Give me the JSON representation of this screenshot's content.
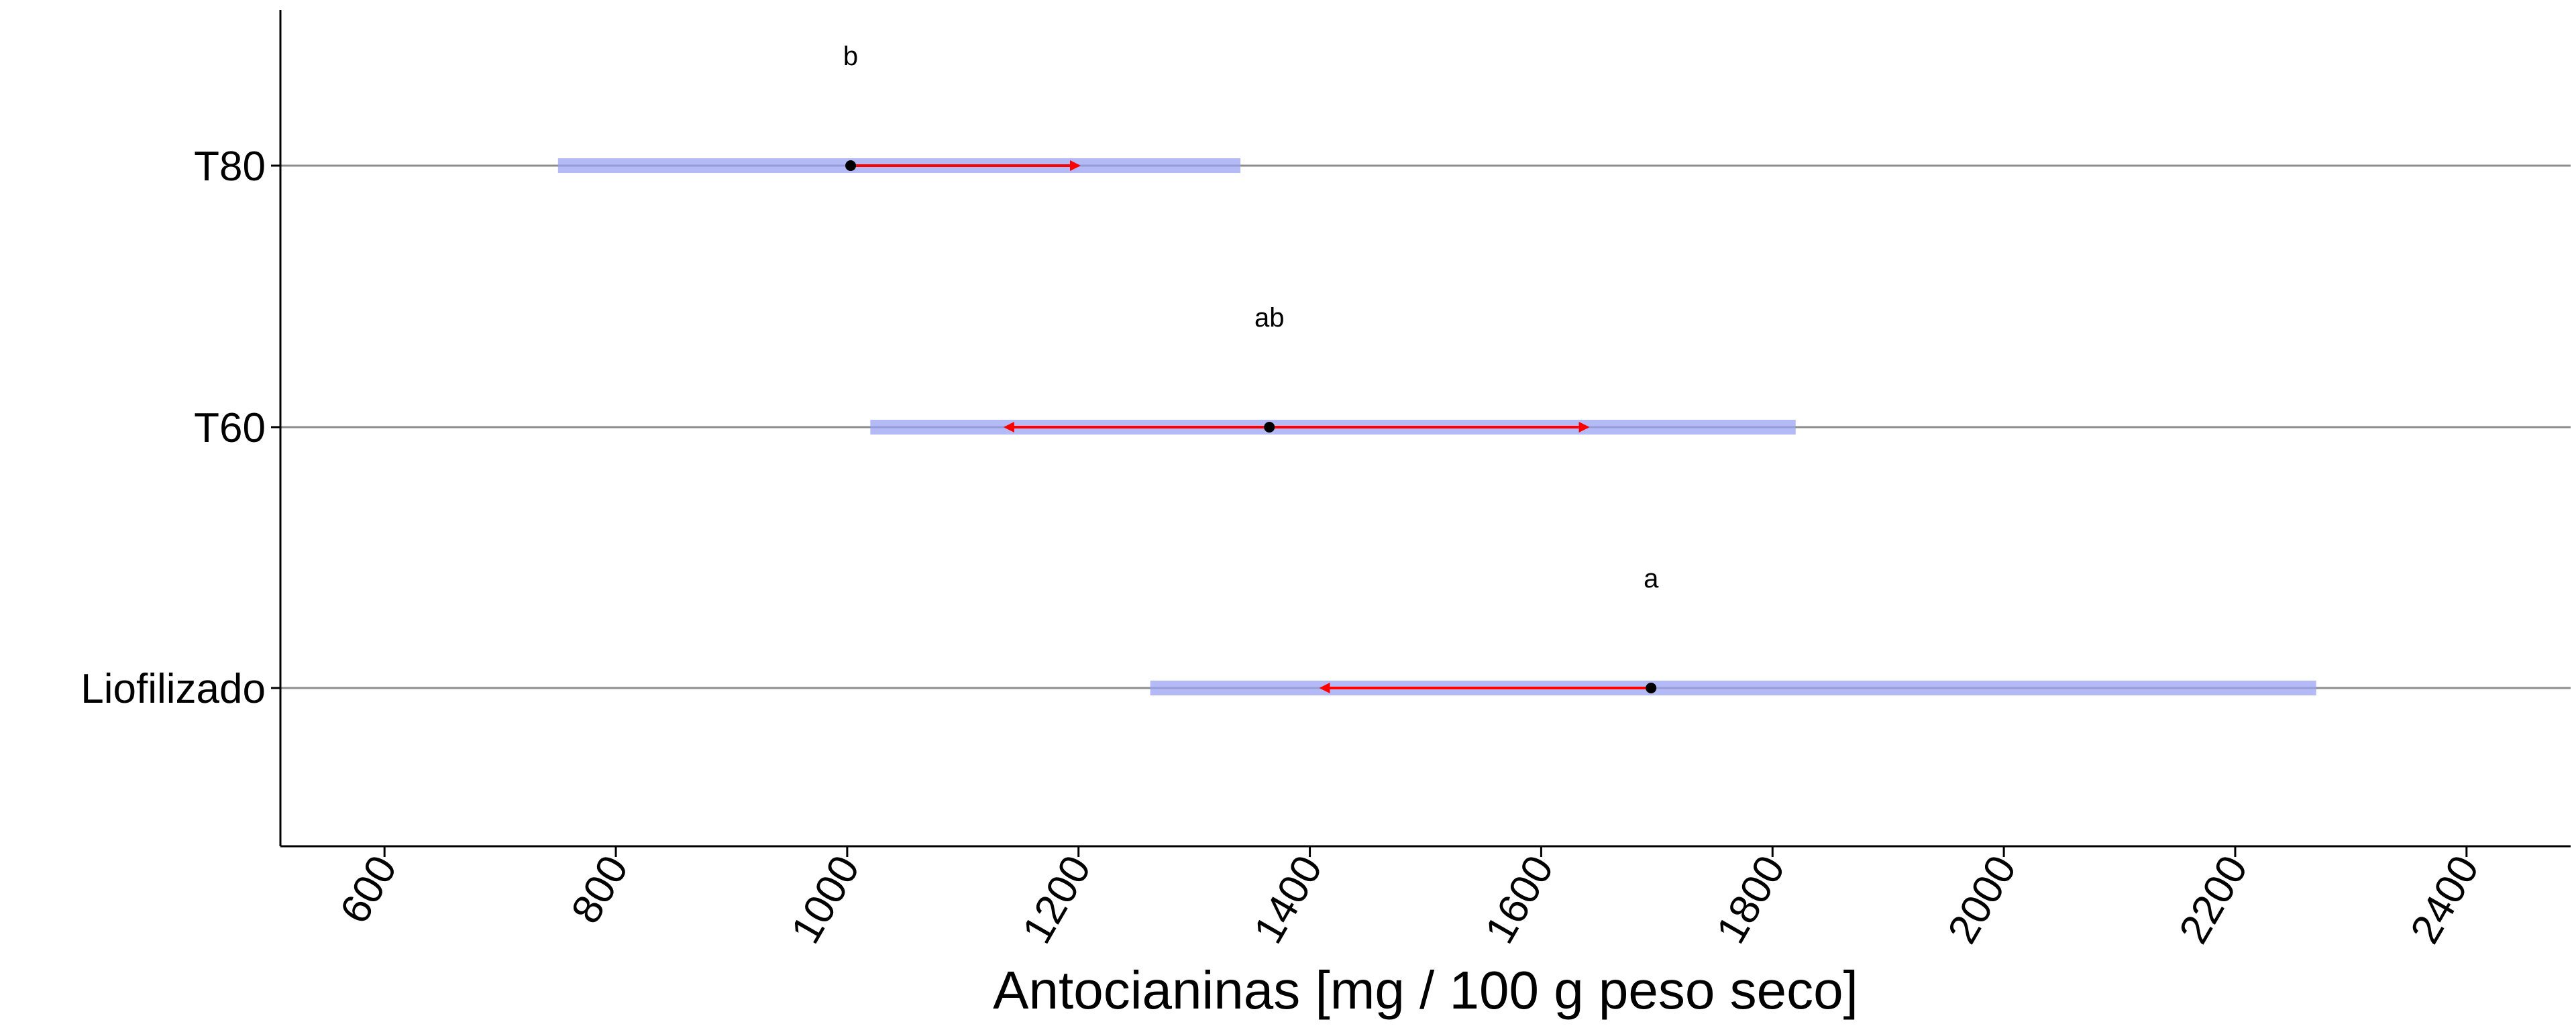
{
  "chart_data": {
    "type": "interval",
    "xlabel": "Antocianinas [mg / 100 g peso seco]",
    "ylabel": "",
    "title": "",
    "xlim": [
      510,
      2490
    ],
    "xticks": [
      600,
      800,
      1000,
      1200,
      1400,
      1600,
      1800,
      2000,
      2200,
      2400
    ],
    "grid": "horizontal lines at categories",
    "colors": {
      "interval": "#9aa3f2",
      "arrow": "#ff0000",
      "point": "#000000",
      "axis": "#000000",
      "gridline": "#8c8c8c"
    },
    "categories": [
      {
        "name": "T80",
        "mean": 1003,
        "ci_low": 750,
        "ci_high": 1340,
        "arrow_low": 1003,
        "arrow_high": 1200,
        "letter": "b"
      },
      {
        "name": "T60",
        "mean": 1365,
        "ci_low": 1020,
        "ci_high": 1820,
        "arrow_low": 1137,
        "arrow_high": 1640,
        "letter": "ab"
      },
      {
        "name": "Liofilizado",
        "mean": 1695,
        "ci_low": 1262,
        "ci_high": 2270,
        "arrow_low": 1410,
        "arrow_high": 1695,
        "letter": "a"
      }
    ]
  }
}
